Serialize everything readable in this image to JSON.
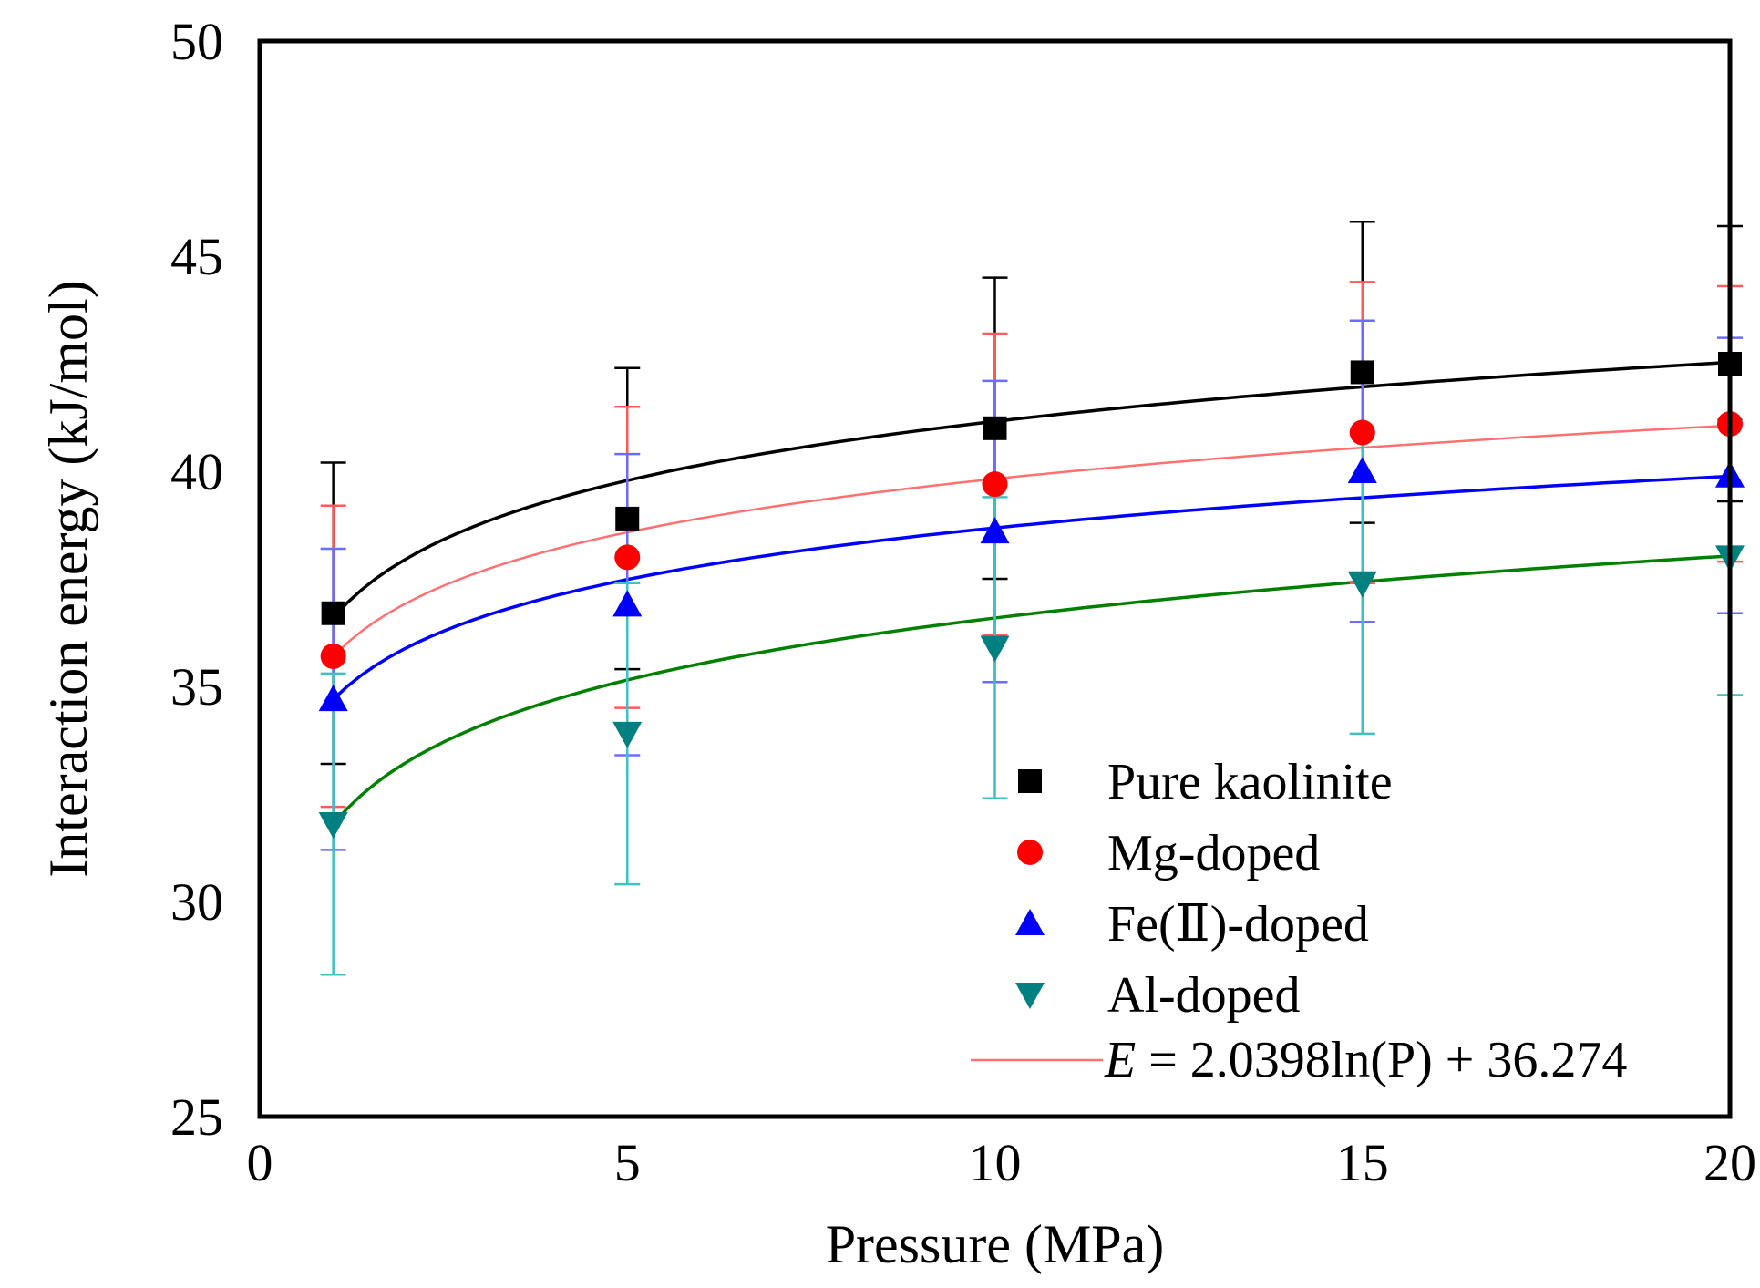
{
  "chart_data": {
    "type": "scatter",
    "title": "",
    "xlabel": "Pressure (MPa)",
    "ylabel": "Interaction energy (kJ/mol)",
    "xlim": [
      0,
      20
    ],
    "ylim": [
      25,
      50
    ],
    "xticks": [
      "0",
      "5",
      "10",
      "15",
      "20"
    ],
    "yticks": [
      "25",
      "30",
      "35",
      "40",
      "45",
      "50"
    ],
    "grid": false,
    "legend_position": "bottom-right",
    "series": [
      {
        "name": "Pure kaolinite",
        "marker": "square",
        "color": "#000000",
        "error_color": "#000000",
        "x": [
          1,
          5,
          10,
          15,
          20
        ],
        "y": [
          36.7,
          38.9,
          41.0,
          42.3,
          42.5
        ],
        "error": [
          3.5,
          3.5,
          3.5,
          3.5,
          3.2
        ],
        "fit": {
          "a": 1.98,
          "b": 36.6
        }
      },
      {
        "name": "Mg-doped",
        "marker": "circle",
        "color": "#ff0000",
        "error_color": "#ff5a5a",
        "x": [
          1,
          5,
          10,
          15,
          20
        ],
        "y": [
          35.7,
          38.0,
          39.7,
          40.9,
          41.1
        ],
        "error": [
          3.5,
          3.5,
          3.5,
          3.5,
          3.2
        ],
        "fit": {
          "a": 1.79,
          "b": 35.7
        }
      },
      {
        "name": "Fe(Ⅱ)-doped",
        "marker": "triangle-up",
        "color": "#0000ff",
        "error_color": "#6b6bff",
        "x": [
          1,
          5,
          10,
          15,
          20
        ],
        "y": [
          34.7,
          36.9,
          38.6,
          40.0,
          39.9
        ],
        "error": [
          3.5,
          3.5,
          3.5,
          3.5,
          3.2
        ],
        "fit": {
          "a": 1.73,
          "b": 34.7
        }
      },
      {
        "name": "Al-doped",
        "marker": "triangle-down",
        "color": "#008080",
        "error_color": "#40c0c0",
        "x": [
          1,
          5,
          10,
          15,
          20
        ],
        "y": [
          31.8,
          33.9,
          35.9,
          37.4,
          38.0
        ],
        "error": [
          3.5,
          3.5,
          3.5,
          3.5,
          3.2
        ],
        "fit": {
          "a": 2.08,
          "b": 31.8
        }
      }
    ],
    "fit_lines": [
      {
        "series": "Pure kaolinite",
        "color": "#000000"
      },
      {
        "series": "Mg-doped",
        "color": "#ff7070"
      },
      {
        "series": "Fe(Ⅱ)-doped",
        "color": "#0000ff"
      },
      {
        "series": "Al-doped",
        "color": "#008000"
      }
    ],
    "annotation": {
      "var": "E",
      "text": " = 2.0398ln(P) + 36.274",
      "line_color": "#ff7070"
    }
  }
}
